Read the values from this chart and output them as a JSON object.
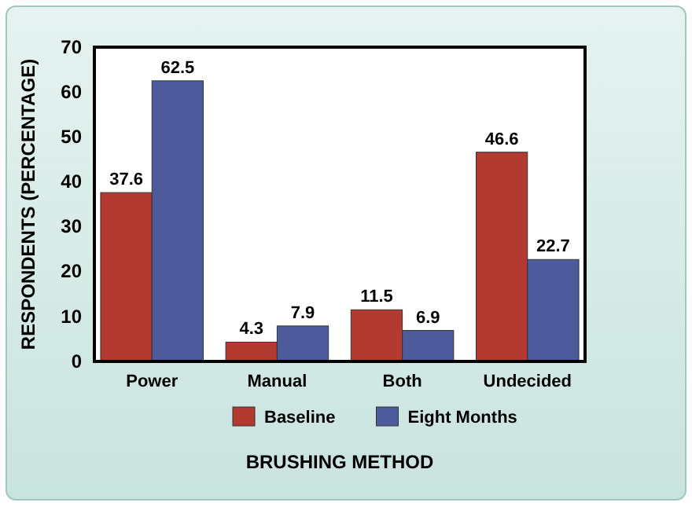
{
  "chart_data": {
    "type": "bar",
    "xlabel": "BRUSHING METHOD",
    "ylabel": "RESPONDENTS (PERCENTAGE)",
    "categories": [
      "Power",
      "Manual",
      "Both",
      "Undecided"
    ],
    "series": [
      {
        "name": "Baseline",
        "color": "#b23a30",
        "values": [
          37.6,
          4.3,
          11.5,
          46.6
        ]
      },
      {
        "name": "Eight Months",
        "color": "#4d5a9c",
        "values": [
          62.5,
          7.9,
          6.9,
          22.7
        ]
      }
    ],
    "ylim": [
      0,
      70
    ],
    "yticks": [
      0,
      10,
      20,
      30,
      40,
      50,
      60,
      70
    ],
    "data_labels": true,
    "legend": "bottom",
    "grid": false
  }
}
